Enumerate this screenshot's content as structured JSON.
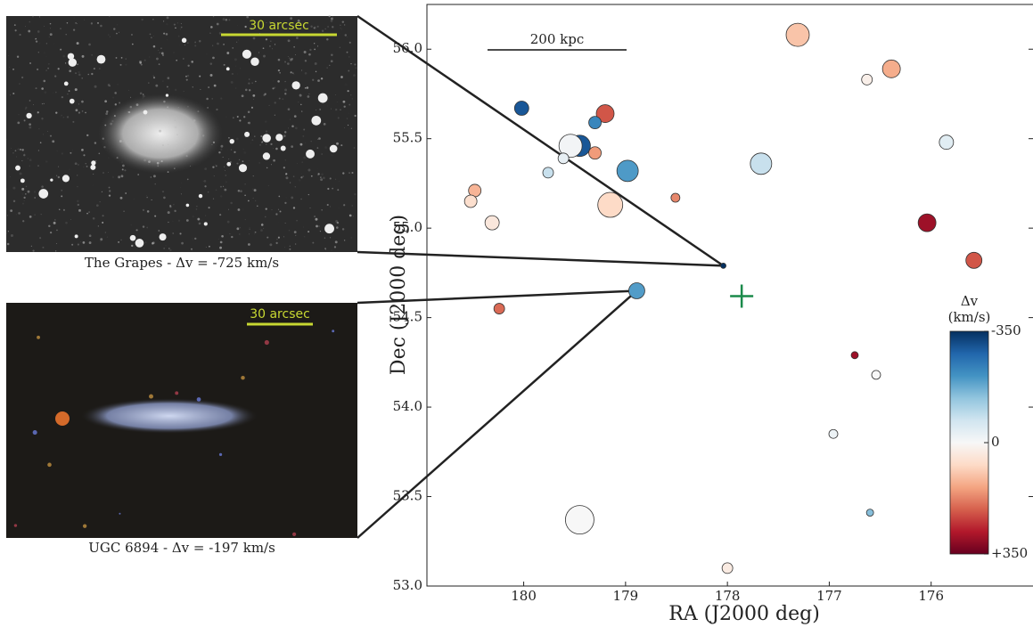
{
  "images": [
    {
      "scale_label": "30 arcsec",
      "caption": "The Grapes - Δv = -725 km/s"
    },
    {
      "scale_label": "30 arcsec",
      "caption": "UGC 6894 - Δv = -197 km/s"
    }
  ],
  "chart_data": {
    "type": "scatter",
    "xlabel": "RA (J2000 deg)",
    "ylabel": "Dec (J2000 deg)",
    "xlim": [
      180.95,
      175.0
    ],
    "ylim": [
      53.0,
      56.25
    ],
    "xticks": [
      180,
      179,
      178,
      177,
      176
    ],
    "yticks": [
      {
        "value": 53.0,
        "label": "53.0"
      },
      {
        "value": 53.5,
        "label": "53.5"
      },
      {
        "value": 54.0,
        "label": "54.0"
      },
      {
        "value": 54.5,
        "label": "54.5"
      },
      {
        "value": 55.0,
        "label": "55.0"
      },
      {
        "value": 55.5,
        "label": "55.5"
      },
      {
        "value": 56.0,
        "label": "56.0"
      }
    ],
    "scale_bar_label": "200 kpc",
    "series": [
      {
        "x": [
          177.31,
          176.39,
          176.63,
          180.02,
          179.2,
          179.3,
          179.45,
          179.54,
          179.61,
          179.3,
          175.85,
          179.76,
          178.98,
          177.67,
          180.48,
          180.52,
          178.51,
          179.15,
          180.31,
          176.04,
          175.58,
          178.04,
          178.89,
          180.24,
          176.75,
          176.54,
          176.96,
          176.6,
          179.45,
          178.0
        ],
        "y": [
          56.08,
          55.89,
          55.83,
          55.67,
          55.64,
          55.59,
          55.46,
          55.46,
          55.39,
          55.42,
          55.48,
          55.31,
          55.32,
          55.36,
          55.21,
          55.15,
          55.17,
          55.13,
          55.03,
          55.03,
          54.82,
          54.79,
          54.65,
          54.55,
          54.29,
          54.18,
          53.85,
          53.41,
          53.37,
          53.1
        ],
        "dv": [
          100,
          130,
          20,
          -300,
          220,
          -230,
          -300,
          -10,
          -30,
          150,
          -40,
          -80,
          -200,
          -80,
          120,
          60,
          170,
          70,
          40,
          300,
          220,
          -725,
          -197,
          200,
          300,
          0,
          -20,
          -150,
          0,
          30
        ],
        "sizes": [
          13,
          10,
          6,
          8,
          10,
          7,
          12,
          13,
          6,
          7,
          8,
          6,
          12,
          12,
          7,
          7,
          5,
          14,
          8,
          10,
          9,
          3,
          9,
          6,
          4,
          5,
          5,
          4,
          16,
          6
        ]
      }
    ],
    "marker": {
      "x": 177.86,
      "y": 54.62,
      "color": "#1a8a4a"
    },
    "colorbar": {
      "label": [
        "Δv",
        "(km/s)"
      ],
      "lim": [
        -350,
        350
      ],
      "ticks": [
        {
          "value": -350,
          "label": "-350"
        },
        0,
        {
          "value": 350,
          "label": "+350"
        }
      ]
    }
  }
}
